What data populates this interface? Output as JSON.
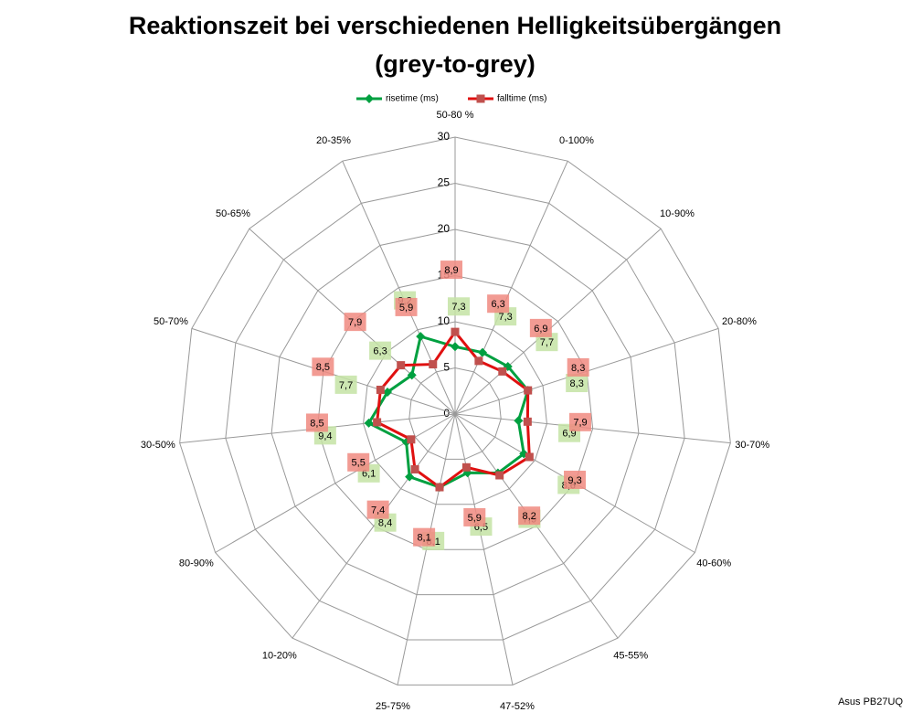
{
  "chart_data": {
    "type": "radar",
    "title": [
      "Reaktionszeit bei verschiedenen Helligkeitsübergängen",
      "(grey-to-grey)"
    ],
    "credit": "Asus PB27UQ",
    "categories": [
      "50-80 %",
      "0-100%",
      "10-90%",
      "20-80%",
      "30-70%",
      "40-60%",
      "45-55%",
      "47-52%",
      "25-75%",
      "10-20%",
      "80-90%",
      "30-50%",
      "50-70%",
      "50-65%",
      "20-35%"
    ],
    "series": [
      {
        "name": "risetime (ms)",
        "color": "#00a040",
        "label_color": "#c4e3a4",
        "values": [
          7.3,
          7.3,
          7.7,
          8.3,
          6.9,
          8.6,
          7.9,
          6.5,
          8.1,
          8.4,
          6.1,
          9.4,
          7.7,
          6.3,
          9.2
        ],
        "value_labels": [
          "7,3",
          "7,3",
          "7,7",
          "8,3",
          "6,9",
          "8,6",
          "7,9",
          "6,5",
          "8,1",
          "8,4",
          "6,1",
          "9,4",
          "7,7",
          "6,3",
          "9,2"
        ]
      },
      {
        "name": "falltime (ms)",
        "color": "#e01010",
        "label_color": "#f08a80",
        "values": [
          8.9,
          6.3,
          6.9,
          8.3,
          7.9,
          9.3,
          8.2,
          5.9,
          8.1,
          7.4,
          5.5,
          8.5,
          8.5,
          7.9,
          5.9
        ],
        "value_labels": [
          "8,9",
          "6,3",
          "6,9",
          "8,3",
          "7,9",
          "9,3",
          "8,2",
          "5,9",
          "8,1",
          "7,4",
          "5,5",
          "8,5",
          "8,5",
          "7,9",
          "5,9"
        ]
      }
    ],
    "ylim": [
      0,
      30
    ],
    "yticks": [
      0,
      5,
      10,
      15,
      20,
      25,
      30
    ],
    "grid": true,
    "legend": "top"
  }
}
